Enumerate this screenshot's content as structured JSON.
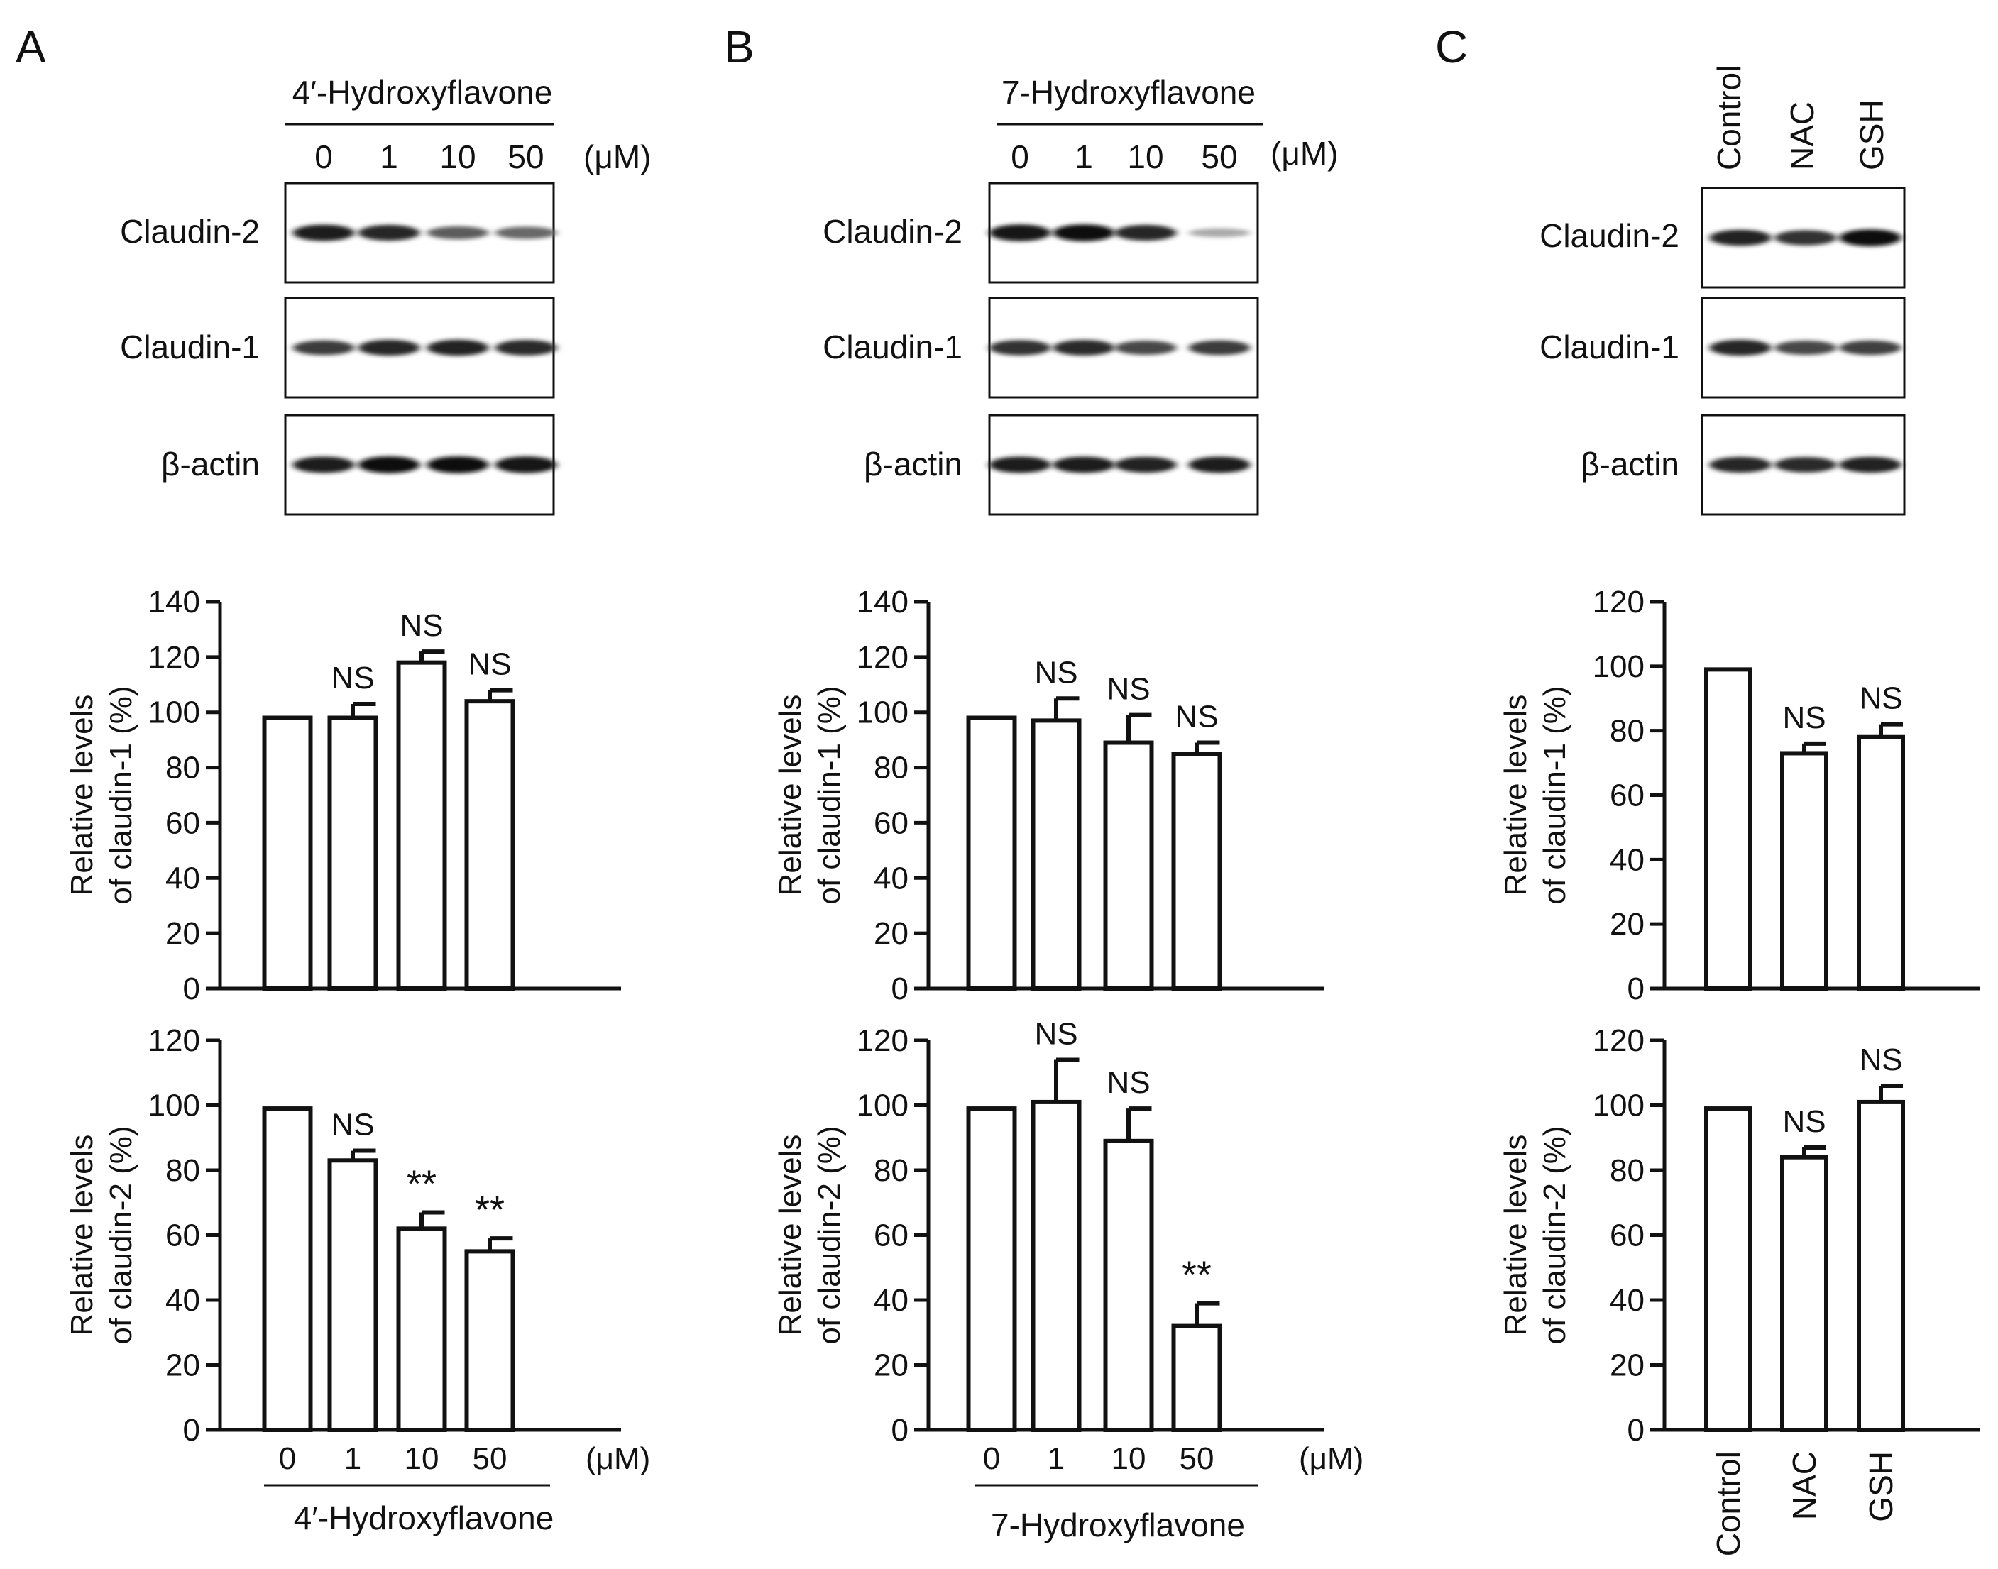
{
  "panel_labels": [
    "A",
    "B",
    "C"
  ],
  "unit": "(μM)",
  "blots": [
    {
      "header": "4′-Hydroxyflavone",
      "lanes": [
        "0",
        "1",
        "10",
        "50"
      ],
      "rows": [
        {
          "label": "Claudin-2",
          "intensities": [
            0.95,
            0.9,
            0.65,
            0.6
          ]
        },
        {
          "label": "Claudin-1",
          "intensities": [
            0.8,
            0.9,
            0.92,
            0.88
          ]
        },
        {
          "label": "β-actin",
          "intensities": [
            0.95,
            1.0,
            1.0,
            0.98
          ]
        }
      ]
    },
    {
      "header": "7-Hydroxyflavone",
      "lanes": [
        "0",
        "1",
        "10",
        "50"
      ],
      "rows": [
        {
          "label": "Claudin-2",
          "intensities": [
            0.98,
            1.0,
            0.9,
            0.3
          ]
        },
        {
          "label": "Claudin-1",
          "intensities": [
            0.85,
            0.88,
            0.75,
            0.8
          ]
        },
        {
          "label": "β-actin",
          "intensities": [
            0.95,
            0.95,
            0.92,
            0.95
          ]
        }
      ]
    },
    {
      "header": "",
      "lanes": [
        "Control",
        "NAC",
        "GSH"
      ],
      "rows": [
        {
          "label": "Claudin-2",
          "intensities": [
            0.92,
            0.85,
            1.0
          ]
        },
        {
          "label": "Claudin-1",
          "intensities": [
            0.9,
            0.75,
            0.78
          ]
        },
        {
          "label": "β-actin",
          "intensities": [
            0.9,
            0.88,
            0.92
          ]
        }
      ]
    }
  ],
  "chart_data": [
    {
      "type": "bar",
      "panel": "A",
      "ylabel": [
        "Relative levels",
        "of claudin-1 (%)"
      ],
      "ylim": [
        0,
        140
      ],
      "yticks": [
        0,
        20,
        40,
        60,
        80,
        100,
        120,
        140
      ],
      "categories": [
        "0",
        "1",
        "10",
        "50"
      ],
      "values": [
        98,
        98,
        118,
        104
      ],
      "errors": [
        0,
        5,
        4,
        4
      ],
      "annotations": [
        "",
        "NS",
        "NS",
        "NS"
      ]
    },
    {
      "type": "bar",
      "panel": "A",
      "ylabel": [
        "Relative levels",
        "of claudin-2 (%)"
      ],
      "ylim": [
        0,
        120
      ],
      "yticks": [
        0,
        20,
        40,
        60,
        80,
        100,
        120
      ],
      "categories": [
        "0",
        "1",
        "10",
        "50"
      ],
      "values": [
        99,
        83,
        62,
        55
      ],
      "errors": [
        0,
        3,
        5,
        4
      ],
      "annotations": [
        "",
        "NS",
        "**",
        "**"
      ],
      "xtick_labels": [
        "0",
        "1",
        "10",
        "50"
      ],
      "unit": "(μM)",
      "xlabel": "4′-Hydroxyflavone"
    },
    {
      "type": "bar",
      "panel": "B",
      "ylabel": [
        "Relative levels",
        "of claudin-1 (%)"
      ],
      "ylim": [
        0,
        140
      ],
      "yticks": [
        0,
        20,
        40,
        60,
        80,
        100,
        120,
        140
      ],
      "categories": [
        "0",
        "1",
        "10",
        "50"
      ],
      "values": [
        98,
        97,
        89,
        85
      ],
      "errors": [
        0,
        8,
        10,
        4
      ],
      "annotations": [
        "",
        "NS",
        "NS",
        "NS"
      ]
    },
    {
      "type": "bar",
      "panel": "B",
      "ylabel": [
        "Relative levels",
        "of claudin-2 (%)"
      ],
      "ylim": [
        0,
        120
      ],
      "yticks": [
        0,
        20,
        40,
        60,
        80,
        100,
        120
      ],
      "categories": [
        "0",
        "1",
        "10",
        "50"
      ],
      "values": [
        99,
        101,
        89,
        32
      ],
      "errors": [
        0,
        13,
        10,
        7
      ],
      "annotations": [
        "",
        "NS",
        "NS",
        "**"
      ],
      "xtick_labels": [
        "0",
        "1",
        "10",
        "50"
      ],
      "unit": "(μM)",
      "xlabel": "7-Hydroxyflavone"
    },
    {
      "type": "bar",
      "panel": "C",
      "ylabel": [
        "Relative levels",
        "of claudin-1 (%)"
      ],
      "ylim": [
        0,
        120
      ],
      "yticks": [
        0,
        20,
        40,
        60,
        80,
        100,
        120
      ],
      "categories": [
        "Control",
        "NAC",
        "GSH"
      ],
      "values": [
        99,
        73,
        78
      ],
      "errors": [
        0,
        3,
        4
      ],
      "annotations": [
        "",
        "NS",
        "NS"
      ]
    },
    {
      "type": "bar",
      "panel": "C",
      "ylabel": [
        "Relative levels",
        "of claudin-2 (%)"
      ],
      "ylim": [
        0,
        120
      ],
      "yticks": [
        0,
        20,
        40,
        60,
        80,
        100,
        120
      ],
      "categories": [
        "Control",
        "NAC",
        "GSH"
      ],
      "values": [
        99,
        84,
        101
      ],
      "errors": [
        0,
        3,
        5
      ],
      "annotations": [
        "",
        "NS",
        "NS"
      ],
      "xtick_labels": [
        "Control",
        "NAC",
        "GSH"
      ],
      "xlabel": ""
    }
  ]
}
